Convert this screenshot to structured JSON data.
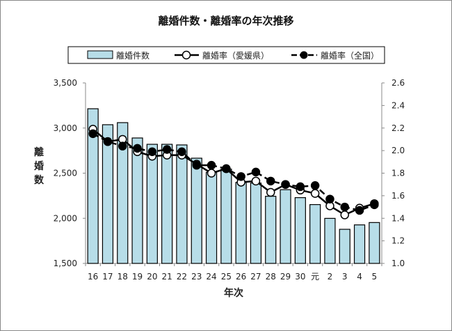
{
  "chart_data": {
    "type": "bar+line",
    "title": "離婚件数・離婚率の年次推移",
    "xlabel": "年次",
    "ylabel": "離婚数",
    "categories": [
      "16",
      "17",
      "18",
      "19",
      "20",
      "21",
      "22",
      "23",
      "24",
      "25",
      "26",
      "27",
      "28",
      "29",
      "30",
      "元",
      "2",
      "3",
      "4",
      "5"
    ],
    "y_left": {
      "range": [
        1500,
        3500
      ],
      "ticks": [
        "1,500",
        "2,000",
        "2,500",
        "3,000",
        "3,500"
      ]
    },
    "y_right": {
      "range": [
        1.0,
        2.6
      ],
      "ticks": [
        "1.0",
        "1.2",
        "1.4",
        "1.6",
        "1.8",
        "2.0",
        "2.2",
        "2.4",
        "2.6"
      ]
    },
    "legend_position": "top",
    "series": [
      {
        "name": "離婚件数",
        "type": "bar",
        "axis": "left",
        "color": "#b7dde8",
        "values": [
          3214,
          3037,
          3060,
          2890,
          2820,
          2820,
          2813,
          2666,
          2510,
          2545,
          2398,
          2391,
          2244,
          2317,
          2229,
          2152,
          1999,
          1878,
          1927,
          1953
        ]
      },
      {
        "name": "離婚率（愛媛県）",
        "type": "line",
        "axis": "right",
        "marker": "open-circle",
        "line": "solid",
        "values": [
          2.19,
          2.08,
          2.1,
          1.99,
          1.95,
          1.96,
          1.96,
          1.88,
          1.8,
          1.84,
          1.72,
          1.73,
          1.63,
          1.7,
          1.65,
          1.62,
          1.51,
          1.43,
          1.49,
          1.53
        ]
      },
      {
        "name": "離婚率（全国）",
        "type": "line",
        "axis": "right",
        "marker": "filled-circle",
        "line": "dashed",
        "values": [
          2.15,
          2.08,
          2.04,
          2.02,
          1.99,
          2.01,
          1.99,
          1.87,
          1.87,
          1.84,
          1.77,
          1.81,
          1.73,
          1.7,
          1.68,
          1.69,
          1.57,
          1.5,
          1.47,
          1.52
        ]
      }
    ]
  }
}
